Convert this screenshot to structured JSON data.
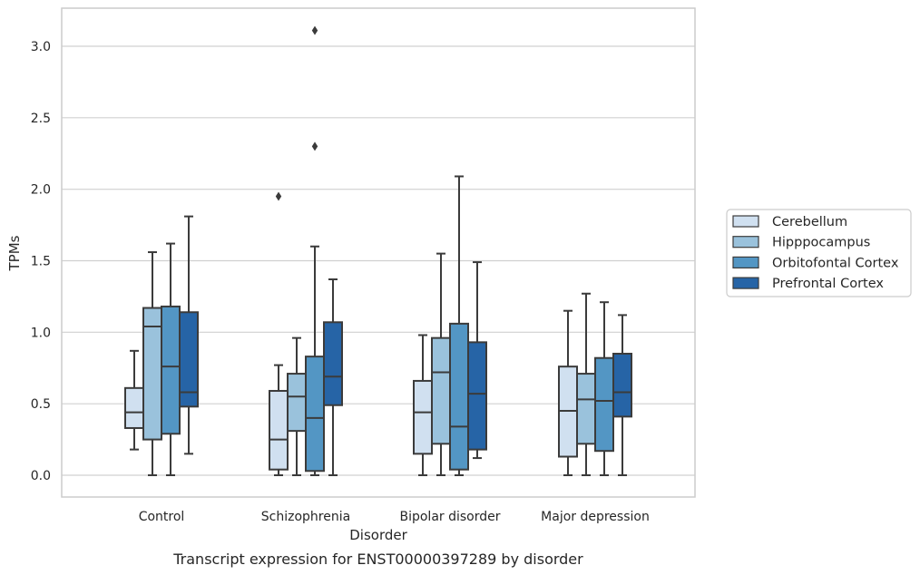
{
  "chart_data": {
    "type": "box",
    "title": "",
    "xlabel": "Disorder",
    "ylabel": "TPMs",
    "caption": "Transcript expression for ENST00000397289 by disorder",
    "ylim": [
      -0.15,
      3.27
    ],
    "yticks": [
      0.0,
      0.5,
      1.0,
      1.5,
      2.0,
      2.5,
      3.0
    ],
    "ytick_labels": [
      "0.0",
      "0.5",
      "1.0",
      "1.5",
      "2.0",
      "2.5",
      "3.0"
    ],
    "grid": "horizontal",
    "legend_position": "right",
    "categories": [
      "Control",
      "Schizophrenia",
      "Bipolar disorder",
      "Major depression"
    ],
    "series": [
      {
        "name": "Cerebellum",
        "color": "#d0e0f0",
        "boxes": [
          {
            "whislo": 0.18,
            "q1": 0.33,
            "med": 0.44,
            "q3": 0.61,
            "whishi": 0.87,
            "fliers": []
          },
          {
            "whislo": 0.0,
            "q1": 0.04,
            "med": 0.25,
            "q3": 0.59,
            "whishi": 0.77,
            "fliers": [
              1.95
            ]
          },
          {
            "whislo": 0.0,
            "q1": 0.15,
            "med": 0.44,
            "q3": 0.66,
            "whishi": 0.98,
            "fliers": []
          },
          {
            "whislo": 0.0,
            "q1": 0.13,
            "med": 0.45,
            "q3": 0.76,
            "whishi": 1.15,
            "fliers": []
          }
        ]
      },
      {
        "name": "Hipppocampus",
        "color": "#9ac2dc",
        "boxes": [
          {
            "whislo": 0.0,
            "q1": 0.25,
            "med": 1.04,
            "q3": 1.17,
            "whishi": 1.56,
            "fliers": []
          },
          {
            "whislo": 0.0,
            "q1": 0.31,
            "med": 0.55,
            "q3": 0.71,
            "whishi": 0.96,
            "fliers": []
          },
          {
            "whislo": 0.0,
            "q1": 0.22,
            "med": 0.72,
            "q3": 0.96,
            "whishi": 1.55,
            "fliers": []
          },
          {
            "whislo": 0.0,
            "q1": 0.22,
            "med": 0.53,
            "q3": 0.71,
            "whishi": 1.27,
            "fliers": []
          }
        ]
      },
      {
        "name": "Orbitofontal Cortex",
        "color": "#5396c4",
        "boxes": [
          {
            "whislo": 0.0,
            "q1": 0.29,
            "med": 0.76,
            "q3": 1.18,
            "whishi": 1.62,
            "fliers": []
          },
          {
            "whislo": 0.0,
            "q1": 0.03,
            "med": 0.4,
            "q3": 0.83,
            "whishi": 1.6,
            "fliers": [
              2.3,
              3.11
            ]
          },
          {
            "whislo": 0.0,
            "q1": 0.04,
            "med": 0.34,
            "q3": 1.06,
            "whishi": 2.09,
            "fliers": []
          },
          {
            "whislo": 0.0,
            "q1": 0.17,
            "med": 0.52,
            "q3": 0.82,
            "whishi": 1.21,
            "fliers": []
          }
        ]
      },
      {
        "name": "Prefrontal Cortex",
        "color": "#2664a6",
        "boxes": [
          {
            "whislo": 0.15,
            "q1": 0.48,
            "med": 0.58,
            "q3": 1.14,
            "whishi": 1.81,
            "fliers": []
          },
          {
            "whislo": 0.0,
            "q1": 0.49,
            "med": 0.69,
            "q3": 1.07,
            "whishi": 1.37,
            "fliers": []
          },
          {
            "whislo": 0.12,
            "q1": 0.18,
            "med": 0.57,
            "q3": 0.93,
            "whishi": 1.49,
            "fliers": []
          },
          {
            "whislo": 0.0,
            "q1": 0.41,
            "med": 0.58,
            "q3": 0.85,
            "whishi": 1.12,
            "fliers": []
          }
        ]
      }
    ]
  }
}
